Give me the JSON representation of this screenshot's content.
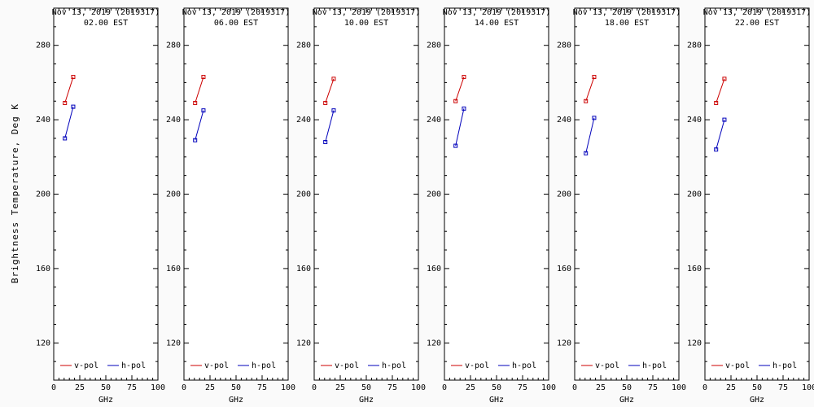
{
  "figure": {
    "y_axis_label": "Brightness Temperature, Deg K",
    "x_axis_label": "GHz",
    "legend": [
      {
        "label": "v-pol",
        "color_key": "v_pol"
      },
      {
        "label": "h-pol",
        "color_key": "h_pol"
      }
    ]
  },
  "colors": {
    "v_pol": "#cc0000",
    "h_pol": "#0000bb",
    "frame": "#000000",
    "text": "#000000",
    "background": "#fafafa"
  },
  "axes": {
    "x_range": [
      0,
      100
    ],
    "y_range": [
      100,
      300
    ],
    "x_ticks": [
      0,
      25,
      50,
      75,
      100
    ],
    "y_ticks": [
      120,
      160,
      200,
      240,
      280
    ]
  },
  "chart_data": [
    {
      "type": "line",
      "title": "Nov 13, 2019 (2019317)",
      "subtitle": "02.00 EST",
      "xlabel": "GHz",
      "ylabel": "Brightness Temperature, Deg K",
      "x": [
        10.7,
        18.7
      ],
      "xlim": [
        0,
        100
      ],
      "ylim": [
        100,
        300
      ],
      "series": [
        {
          "name": "v-pol",
          "values": [
            249,
            263
          ]
        },
        {
          "name": "h-pol",
          "values": [
            230,
            247
          ]
        }
      ]
    },
    {
      "type": "line",
      "title": "Nov 13, 2019 (2019317)",
      "subtitle": "06.00 EST",
      "xlabel": "GHz",
      "ylabel": "Brightness Temperature, Deg K",
      "x": [
        10.7,
        18.7
      ],
      "xlim": [
        0,
        100
      ],
      "ylim": [
        100,
        300
      ],
      "series": [
        {
          "name": "v-pol",
          "values": [
            249,
            263
          ]
        },
        {
          "name": "h-pol",
          "values": [
            229,
            245
          ]
        }
      ]
    },
    {
      "type": "line",
      "title": "Nov 13, 2019 (2019317)",
      "subtitle": "10.00 EST",
      "xlabel": "GHz",
      "ylabel": "Brightness Temperature, Deg K",
      "x": [
        10.7,
        18.7
      ],
      "xlim": [
        0,
        100
      ],
      "ylim": [
        100,
        300
      ],
      "series": [
        {
          "name": "v-pol",
          "values": [
            249,
            262
          ]
        },
        {
          "name": "h-pol",
          "values": [
            228,
            245
          ]
        }
      ]
    },
    {
      "type": "line",
      "title": "Nov 13, 2019 (2019317)",
      "subtitle": "14.00 EST",
      "xlabel": "GHz",
      "ylabel": "Brightness Temperature, Deg K",
      "x": [
        10.7,
        18.7
      ],
      "xlim": [
        0,
        100
      ],
      "ylim": [
        100,
        300
      ],
      "series": [
        {
          "name": "v-pol",
          "values": [
            250,
            263
          ]
        },
        {
          "name": "h-pol",
          "values": [
            226,
            246
          ]
        }
      ]
    },
    {
      "type": "line",
      "title": "Nov 13, 2019 (2019317)",
      "subtitle": "18.00 EST",
      "xlabel": "GHz",
      "ylabel": "Brightness Temperature, Deg K",
      "x": [
        10.7,
        18.7
      ],
      "xlim": [
        0,
        100
      ],
      "ylim": [
        100,
        300
      ],
      "series": [
        {
          "name": "v-pol",
          "values": [
            250,
            263
          ]
        },
        {
          "name": "h-pol",
          "values": [
            222,
            241
          ]
        }
      ]
    },
    {
      "type": "line",
      "title": "Nov 13, 2019 (2019317)",
      "subtitle": "22.00 EST",
      "xlabel": "GHz",
      "ylabel": "Brightness Temperature, Deg K",
      "x": [
        10.7,
        18.7
      ],
      "xlim": [
        0,
        100
      ],
      "ylim": [
        100,
        300
      ],
      "series": [
        {
          "name": "v-pol",
          "values": [
            249,
            262
          ]
        },
        {
          "name": "h-pol",
          "values": [
            224,
            240
          ]
        }
      ]
    }
  ]
}
